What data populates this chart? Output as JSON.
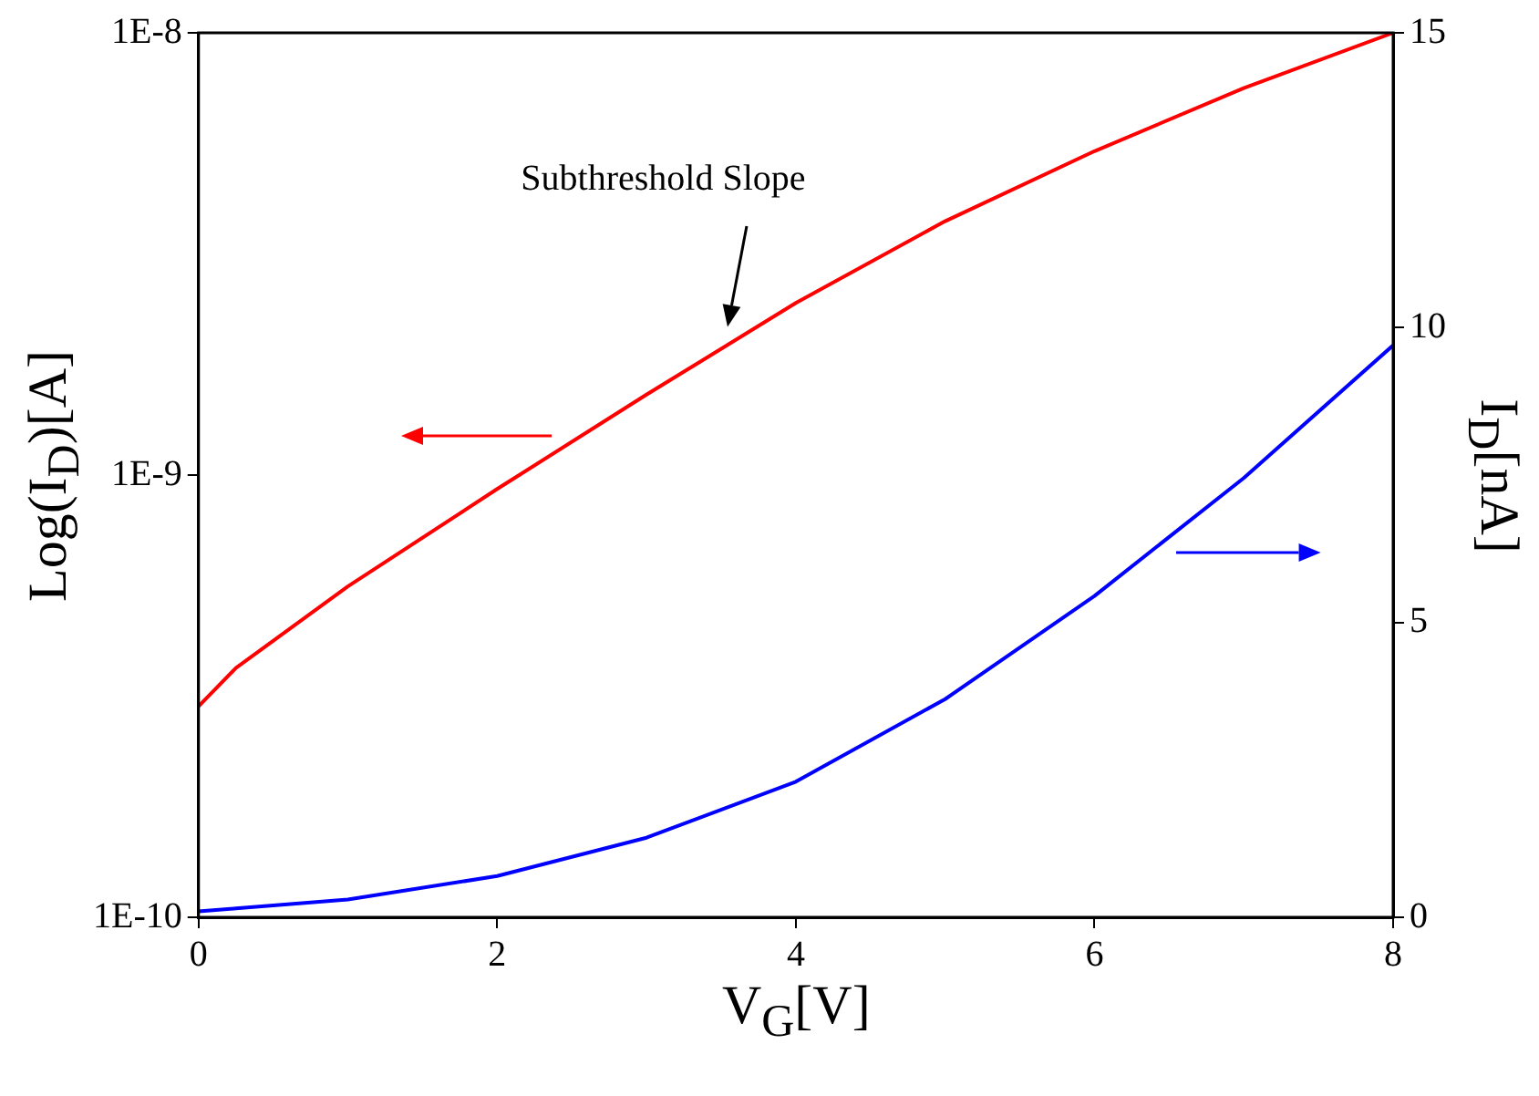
{
  "chart_data": {
    "type": "line",
    "xlabel": "V$_{G}$[V]",
    "ylabel": "Log(I$_{D}$)[A]",
    "y2label": "I$_{D}$[nA]",
    "x": [
      0,
      0.25,
      1,
      2,
      3,
      4,
      5,
      6,
      7,
      8
    ],
    "series": [
      {
        "color": "#ff0000",
        "values": [
          3e-10,
          3.66e-10,
          5.6e-10,
          9.3e-10,
          1.52e-09,
          2.45e-09,
          3.75e-09,
          5.4e-09,
          7.5e-09,
          1e-08
        ]
      },
      {
        "color": "#0000ff",
        "axis": "y2",
        "values": [
          0.1,
          0.15,
          0.3,
          0.7,
          1.35,
          2.3,
          3.7,
          5.45,
          7.45,
          9.7
        ]
      }
    ],
    "xlim": [
      0,
      8
    ],
    "xticks": [
      0,
      2,
      4,
      6,
      8
    ],
    "ylim": [
      1e-10,
      1e-08
    ],
    "yticks": [
      {
        "value": 1e-10,
        "label": "1E-10"
      },
      {
        "value": 1e-09,
        "label": "1E-9"
      },
      {
        "value": 1e-08,
        "label": "1E-8"
      }
    ],
    "y2lim": [
      0,
      15
    ],
    "y2ticks": [
      0,
      5,
      10,
      15
    ],
    "log": "y",
    "grid": false,
    "legend": false,
    "marker": "none",
    "line_style": "solid",
    "annotations": [
      "Subthreshold Slope"
    ]
  }
}
